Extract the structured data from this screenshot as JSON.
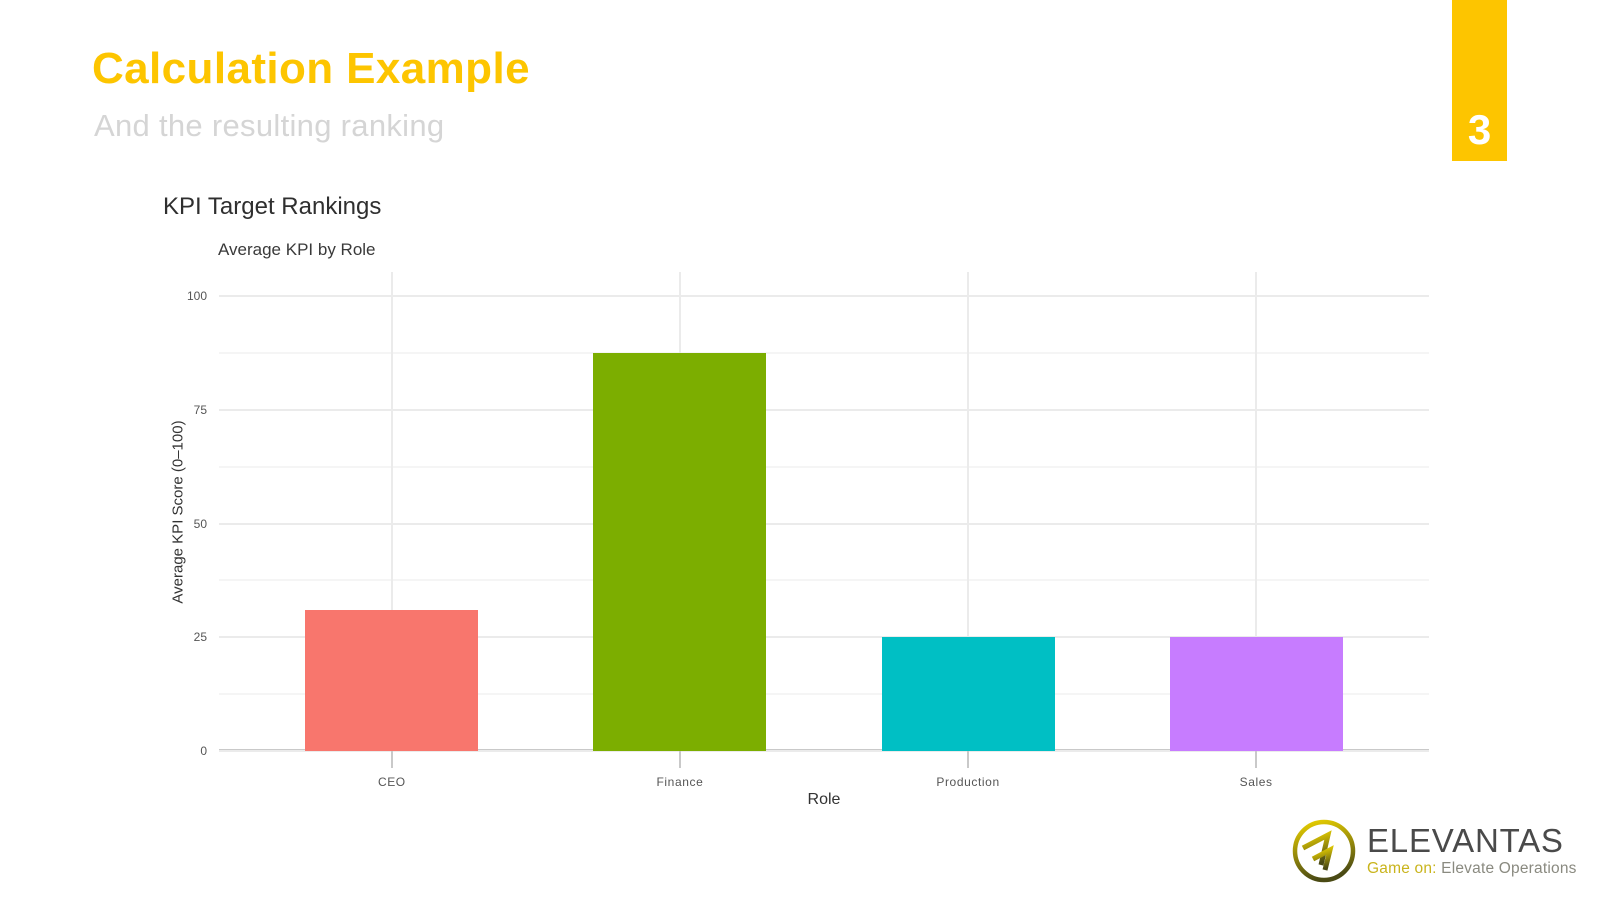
{
  "slide": {
    "title": "Calculation Example",
    "subtitle": "And the resulting ranking",
    "page_number": "3"
  },
  "colors": {
    "accent_yellow": "#FDC500",
    "subtitle_gray": "#D5D5D5",
    "grid_major": "#EBEBEB",
    "grid_minor": "#F5F5F5",
    "axis_line": "#C9C9C9",
    "tick_text": "#555555"
  },
  "chart_data": {
    "type": "bar",
    "title": "KPI Target Rankings",
    "subtitle": "Average KPI by Role",
    "xlabel": "Role",
    "ylabel": "Average KPI Score (0–100)",
    "categories": [
      "CEO",
      "Finance",
      "Production",
      "Sales"
    ],
    "values": [
      31,
      87.5,
      25,
      25
    ],
    "bar_colors": [
      "#F8766D",
      "#7CAE00",
      "#00BFC4",
      "#C77CFF"
    ],
    "ylim": [
      0,
      100
    ],
    "yticks": [
      0,
      25,
      50,
      75,
      100
    ],
    "minor_gridlines": true,
    "grid": "on",
    "legend": "none"
  },
  "logo": {
    "wordmark": "ELEVANTAS",
    "tagline_highlight": "Game on:",
    "tagline_rest": " Elevate Operations",
    "wordmark_color": "#4A4A4A",
    "tagline_highlight_color": "#C9B41C",
    "tagline_rest_color": "#8A8A80",
    "mark_gradient_top": "#E8CF00",
    "mark_gradient_bottom": "#4A4A14"
  }
}
